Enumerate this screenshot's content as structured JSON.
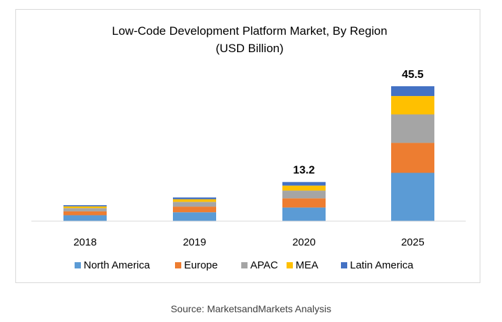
{
  "chart_data": {
    "type": "bar",
    "stacked": true,
    "title": "Low-Code Development Platform Market, By Region",
    "subtitle": "(USD Billion)",
    "categories": [
      "2018",
      "2019",
      "2020",
      "2025"
    ],
    "series": [
      {
        "name": "North America",
        "color": "#5b9bd5",
        "values": [
          2.0,
          3.0,
          4.6,
          16.3
        ]
      },
      {
        "name": "Europe",
        "color": "#ed7d31",
        "values": [
          1.3,
          1.9,
          3.1,
          10.1
        ]
      },
      {
        "name": "APAC",
        "color": "#a5a5a5",
        "values": [
          1.1,
          1.6,
          2.6,
          9.6
        ]
      },
      {
        "name": "MEA",
        "color": "#ffc000",
        "values": [
          0.6,
          0.9,
          1.7,
          6.2
        ]
      },
      {
        "name": "Latin America",
        "color": "#4472c4",
        "values": [
          0.4,
          0.6,
          1.2,
          3.3
        ]
      }
    ],
    "total_labels": [
      "",
      "",
      "13.2",
      "45.5"
    ],
    "ylim": [
      0,
      52
    ],
    "xlabel": "",
    "ylabel": "",
    "legend": "bottom"
  },
  "source": "Source: MarketsandMarkets Analysis"
}
